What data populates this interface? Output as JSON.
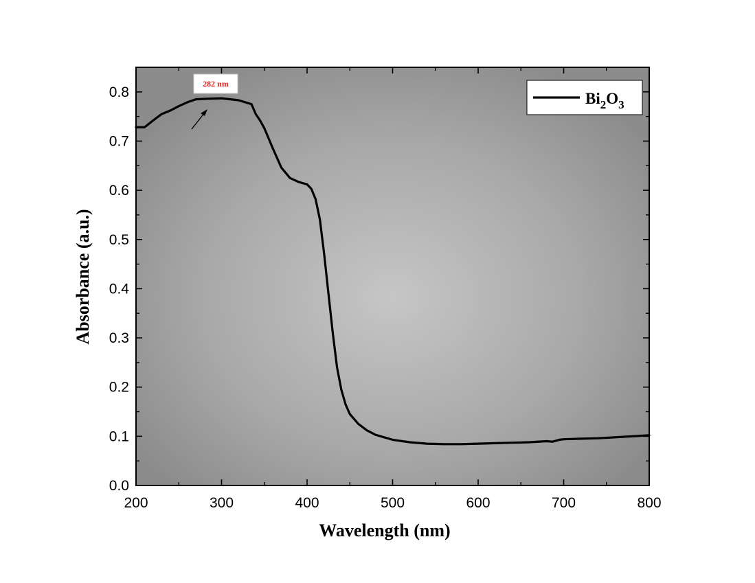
{
  "chart_data": {
    "type": "line",
    "xlabel": "Wavelength (nm)",
    "ylabel": "Absorbance (a.u.)",
    "xlim": [
      200,
      800
    ],
    "ylim": [
      0.0,
      0.85
    ],
    "x_ticks": [
      200,
      300,
      400,
      500,
      600,
      700,
      800
    ],
    "y_ticks": [
      0.0,
      0.1,
      0.2,
      0.3,
      0.4,
      0.5,
      0.6,
      0.7,
      0.8
    ],
    "x_tick_labels": [
      "200",
      "300",
      "400",
      "500",
      "600",
      "700",
      "800"
    ],
    "y_tick_labels": [
      "0.0",
      "0.1",
      "0.2",
      "0.3",
      "0.4",
      "0.5",
      "0.6",
      "0.7",
      "0.8"
    ],
    "grid": false,
    "legend_position": "top-right",
    "series": [
      {
        "name": "Bi",
        "name_sub1": "2",
        "name_mid": "O",
        "name_sub2": "3",
        "color": "#000000",
        "x": [
          200,
          210,
          220,
          230,
          240,
          250,
          260,
          270,
          282,
          300,
          320,
          335,
          340,
          345,
          350,
          360,
          370,
          380,
          390,
          400,
          405,
          410,
          415,
          420,
          425,
          430,
          435,
          440,
          445,
          450,
          460,
          470,
          480,
          500,
          520,
          540,
          560,
          580,
          600,
          620,
          640,
          660,
          680,
          687,
          695,
          700,
          720,
          740,
          760,
          780,
          800
        ],
        "y": [
          0.728,
          0.728,
          0.742,
          0.755,
          0.762,
          0.771,
          0.779,
          0.785,
          0.786,
          0.787,
          0.783,
          0.775,
          0.755,
          0.742,
          0.726,
          0.685,
          0.646,
          0.625,
          0.617,
          0.612,
          0.603,
          0.582,
          0.54,
          0.47,
          0.39,
          0.31,
          0.24,
          0.195,
          0.165,
          0.145,
          0.125,
          0.112,
          0.103,
          0.093,
          0.088,
          0.085,
          0.084,
          0.084,
          0.085,
          0.086,
          0.087,
          0.088,
          0.09,
          0.089,
          0.093,
          0.094,
          0.095,
          0.096,
          0.098,
          0.1,
          0.102
        ]
      }
    ],
    "annotation": {
      "text": "282 nm",
      "x": 282,
      "y": 0.786
    }
  }
}
